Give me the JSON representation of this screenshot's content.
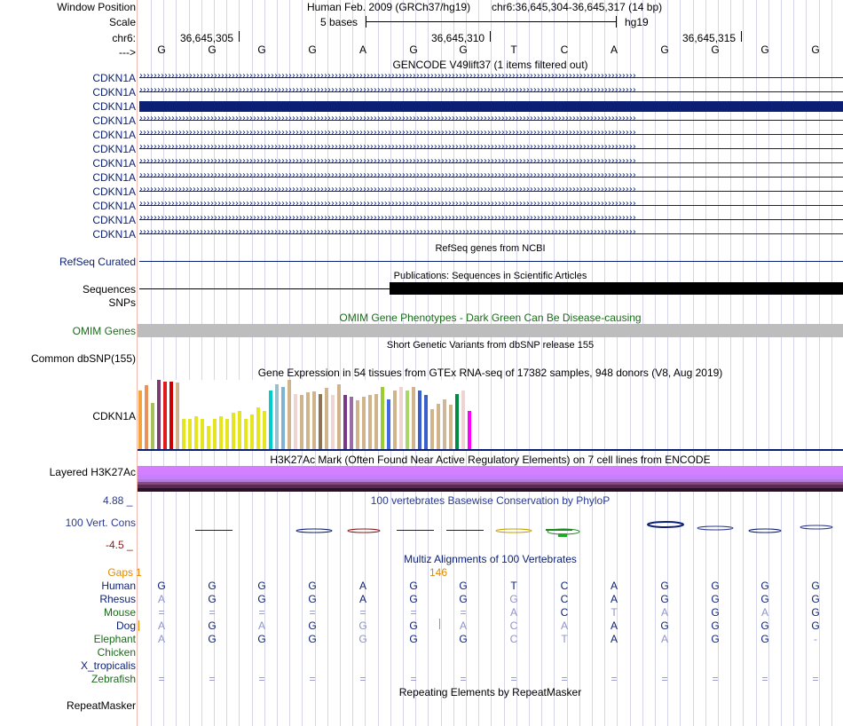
{
  "window_position": {
    "label": "Window Position",
    "assembly": "Human Feb. 2009 (GRCh37/hg19)",
    "range": "chr6:36,645,304-36,645,317 (14 bp)"
  },
  "scale": {
    "label": "Scale",
    "length": "5 bases",
    "db": "hg19"
  },
  "ruler": {
    "chrom_label": "chr6:",
    "positions": [
      "36,645,305",
      "36,645,310",
      "36,645,315"
    ],
    "strand_label": "--->",
    "bases": [
      "G",
      "G",
      "G",
      "G",
      "A",
      "G",
      "G",
      "T",
      "C",
      "A",
      "G",
      "G",
      "G",
      "G"
    ]
  },
  "gencode": {
    "title": "GENCODE V49lift37 (1 items filtered out)",
    "tracks": [
      "CDKN1A",
      "CDKN1A",
      "CDKN1A",
      "CDKN1A",
      "CDKN1A",
      "CDKN1A",
      "CDKN1A",
      "CDKN1A",
      "CDKN1A",
      "CDKN1A",
      "CDKN1A",
      "CDKN1A"
    ]
  },
  "refseq": {
    "title": "RefSeq genes from NCBI",
    "label": "RefSeq Curated"
  },
  "publications": {
    "title": "Publications: Sequences in Scientific Articles",
    "label": "Sequences"
  },
  "snps": {
    "label": "SNPs"
  },
  "omim": {
    "title": "OMIM Gene Phenotypes - Dark Green Can Be Disease-causing",
    "label": "OMIM Genes"
  },
  "dbsnp": {
    "title": "Short Genetic Variants from dbSNP release 155",
    "label": "Common dbSNP(155)"
  },
  "gtex": {
    "title": "Gene Expression in 54 tissues from GTEx RNA-seq of 17382 samples, 948 donors (V8, Aug 2019)",
    "label": "CDKN1A",
    "bar_values": [
      0.85,
      0.92,
      0.67,
      1.0,
      0.97,
      0.97,
      0.96,
      0.44,
      0.44,
      0.48,
      0.43,
      0.33,
      0.43,
      0.48,
      0.43,
      0.53,
      0.55,
      0.43,
      0.5,
      0.6,
      0.55,
      0.85,
      0.93,
      0.9,
      1.0,
      0.8,
      0.78,
      0.82,
      0.83,
      0.8,
      0.88,
      0.78,
      0.94,
      0.78,
      0.75,
      0.7,
      0.75,
      0.78,
      0.8,
      0.9,
      0.72,
      0.85,
      0.9,
      0.84,
      0.9,
      0.85,
      0.78,
      0.58,
      0.66,
      0.72,
      0.64,
      0.8,
      0.84,
      0.55
    ],
    "bar_colors": [
      "#f4a33e",
      "#e9935a",
      "#a5c25c",
      "#7a3f6f",
      "#e31a1c",
      "#cc0000",
      "#d2b48c",
      "#e6e620",
      "#e6e620",
      "#e6e620",
      "#e6e620",
      "#e6e620",
      "#e6e620",
      "#e6e620",
      "#e6e620",
      "#e6e620",
      "#e6e620",
      "#e6e620",
      "#e6e620",
      "#e6e620",
      "#e6e620",
      "#00cdcd",
      "#9ac0cd",
      "#7fb3d5",
      "#d2b48c",
      "#eed5d2",
      "#d2b48c",
      "#d2b48c",
      "#d2b48c",
      "#8b7355",
      "#d2b48c",
      "#eed5d2",
      "#d2b48c",
      "#7a378b",
      "#9b6ba7",
      "#d2b48c",
      "#d2b48c",
      "#d2b48c",
      "#d2b48c",
      "#9acd32",
      "#4169e1",
      "#d2b48c",
      "#eed5d2",
      "#a6d96a",
      "#d2b48c",
      "#3a5fcd",
      "#3a5fcd",
      "#d2b48c",
      "#d2b48c",
      "#cdb79e",
      "#d2b48c",
      "#008b45",
      "#eed5d2",
      "#ff00ff"
    ]
  },
  "h3k27ac": {
    "title": "H3K27Ac Mark (Often Found Near Active Regulatory Elements) on 7 cell lines from ENCODE",
    "label": "Layered H3K27Ac",
    "band_colors": [
      "#d280ff",
      "#c580ff",
      "#b47bd9",
      "#8a4a80",
      "#5a2a50",
      "#2a1028"
    ]
  },
  "phylop": {
    "title": "100 vertebrates Basewise Conservation by PhyloP",
    "label": "100 Vert. Cons",
    "max": "4.88 _",
    "min": "-4.5 _"
  },
  "multiz": {
    "title": "Multiz Alignments of 100 Vertebrates",
    "gaps_label": "Gaps",
    "gaps_value1": "1",
    "gaps_value2": "146",
    "species": [
      {
        "name": "Human",
        "color": "#0b1f74",
        "seq": [
          "G",
          "G",
          "G",
          "G",
          "A",
          "G",
          "G",
          "T",
          "C",
          "A",
          "G",
          "G",
          "G",
          "G"
        ]
      },
      {
        "name": "Rhesus",
        "color": "#0b1f74",
        "seq": [
          "A",
          "G",
          "G",
          "G",
          "A",
          "G",
          "G",
          "G",
          "C",
          "A",
          "G",
          "G",
          "G",
          "G"
        ]
      },
      {
        "name": "Mouse",
        "color": "#1a6b1a",
        "seq": [
          "=",
          "=",
          "=",
          "=",
          "=",
          "=",
          "=",
          "A",
          "C",
          "T",
          "A",
          "G",
          "A",
          "G"
        ]
      },
      {
        "name": "Dog",
        "color": "#0b1f74",
        "seq": [
          "A",
          "G",
          "A",
          "G",
          "G",
          "G",
          "A",
          "C",
          "A",
          "A",
          "G",
          "G",
          "G",
          "G"
        ]
      },
      {
        "name": "Elephant",
        "color": "#1a6b1a",
        "seq": [
          "A",
          "G",
          "G",
          "G",
          "G",
          "G",
          "G",
          "C",
          "T",
          "A",
          "A",
          "G",
          "G",
          "-"
        ]
      },
      {
        "name": "Chicken",
        "color": "#1a6b1a",
        "seq": []
      },
      {
        "name": "X_tropicalis",
        "color": "#0b1f74",
        "seq": []
      },
      {
        "name": "Zebrafish",
        "color": "#1a6b1a",
        "seq": [
          "=",
          "=",
          "=",
          "=",
          "=",
          "=",
          "=",
          "=",
          "=",
          "=",
          "=",
          "=",
          "=",
          "="
        ]
      }
    ]
  },
  "repeatmasker": {
    "title": "Repeating Elements by RepeatMasker",
    "label": "RepeatMasker"
  }
}
